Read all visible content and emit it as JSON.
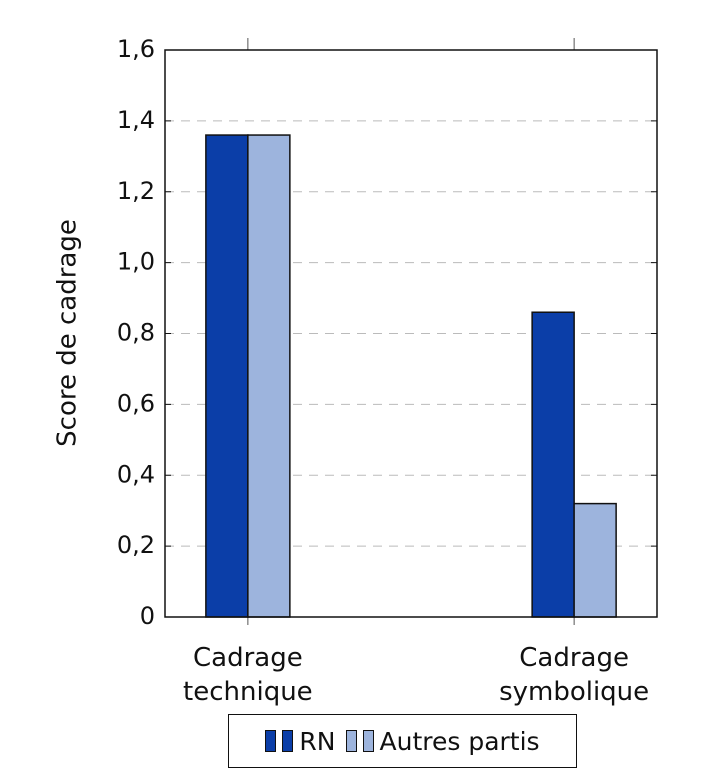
{
  "chart_data": {
    "type": "bar",
    "y_label": "Score de cadrage",
    "categories": [
      "Cadrage technique",
      "Cadrage symbolique"
    ],
    "series": [
      {
        "name": "RN",
        "color": "#0b3ea8",
        "values": [
          1.36,
          0.86
        ]
      },
      {
        "name": "Autres partis",
        "color": "#9db4dd",
        "values": [
          1.36,
          0.32
        ]
      }
    ],
    "ylim": [
      0,
      1.6
    ],
    "yticks": [
      0,
      {
        "value": 0.2,
        "label": "0,2"
      },
      {
        "value": 0.4,
        "label": "0,4"
      },
      {
        "value": 0.6,
        "label": "0,6"
      },
      {
        "value": 0.8,
        "label": "0,8"
      },
      {
        "value": 1.0,
        "label": "1,0"
      },
      {
        "value": 1.2,
        "label": "1,2"
      },
      {
        "value": 1.4,
        "label": "1,4"
      },
      {
        "value": 1.6,
        "label": "1,6"
      }
    ],
    "grid": true,
    "legend": "bottom"
  }
}
